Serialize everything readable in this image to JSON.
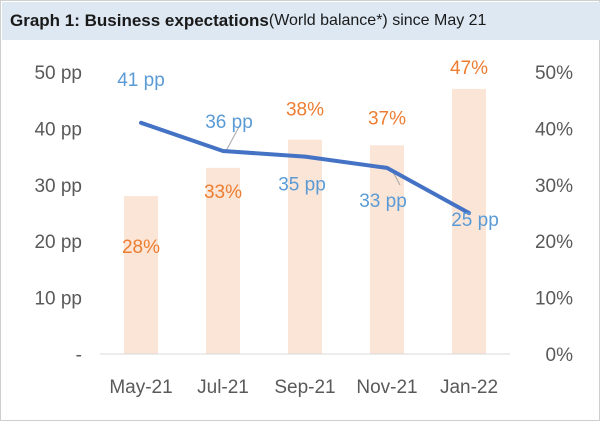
{
  "title": {
    "bold": "Graph 1: Business expectations",
    "normal": " (World balance*) since May 21"
  },
  "colors": {
    "line": "#4472c4",
    "bar": "#fbe5d6",
    "bar_label": "#ed7d31",
    "line_label": "#5b9bd5",
    "axis_text": "#595959",
    "axis_line": "#d9d9d9",
    "title_bg": "#dde8f3"
  },
  "chart_data": {
    "type": "bar",
    "categories": [
      "May-21",
      "Jul-21",
      "Sep-21",
      "Nov-21",
      "Jan-22"
    ],
    "series": [
      {
        "type": "bar",
        "axis": "right",
        "values": [
          28,
          33,
          38,
          37,
          47
        ],
        "labels": [
          "28%",
          "33%",
          "38%",
          "37%",
          "47%"
        ]
      },
      {
        "type": "line",
        "axis": "left",
        "values": [
          41,
          36,
          35,
          33,
          25
        ],
        "labels": [
          "41 pp",
          "36 pp",
          "35 pp",
          "33 pp",
          "25 pp"
        ]
      }
    ],
    "y_left": {
      "ticks": [
        0,
        10,
        20,
        30,
        40,
        50
      ],
      "tick_labels": [
        "-",
        "10 pp",
        "20 pp",
        "30 pp",
        "40 pp",
        "50 pp"
      ],
      "lim": [
        0,
        50
      ]
    },
    "y_right": {
      "ticks": [
        0,
        10,
        20,
        30,
        40,
        50
      ],
      "tick_labels": [
        "0%",
        "10%",
        "20%",
        "30%",
        "40%",
        "50%"
      ],
      "lim": [
        0,
        50
      ]
    },
    "grid": false,
    "legend": "none"
  }
}
